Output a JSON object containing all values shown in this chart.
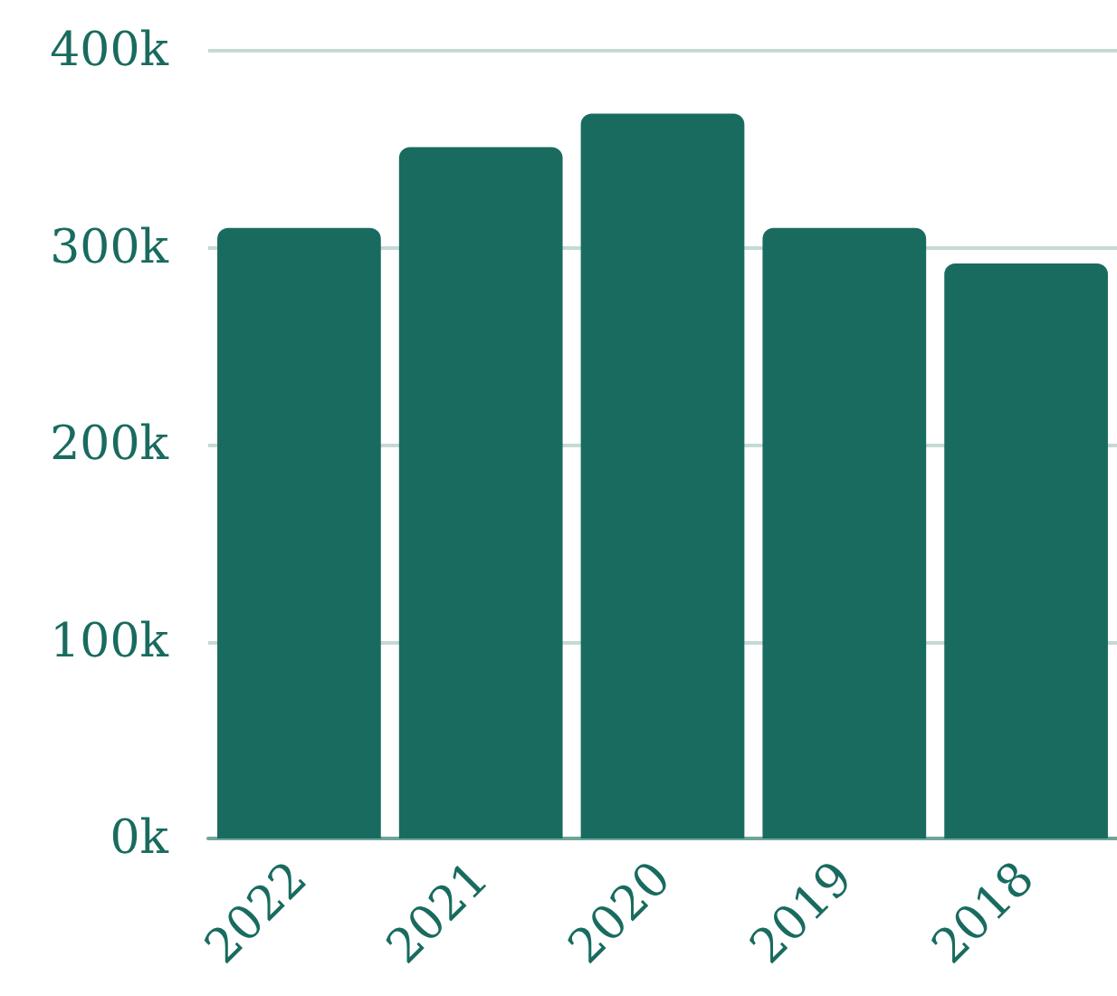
{
  "chart_data": {
    "type": "bar",
    "categories": [
      "2022",
      "2021",
      "2020",
      "2019",
      "2018"
    ],
    "values": [
      310000,
      351000,
      368000,
      310000,
      292000
    ],
    "color": "#196b5f",
    "ylim": [
      0,
      400000
    ],
    "yticks": [
      {
        "value": 0,
        "label": "0k"
      },
      {
        "value": 100000,
        "label": "100k"
      },
      {
        "value": 200000,
        "label": "200k"
      },
      {
        "value": 300000,
        "label": "300k"
      },
      {
        "value": 400000,
        "label": "400k"
      }
    ],
    "grid": "y"
  }
}
